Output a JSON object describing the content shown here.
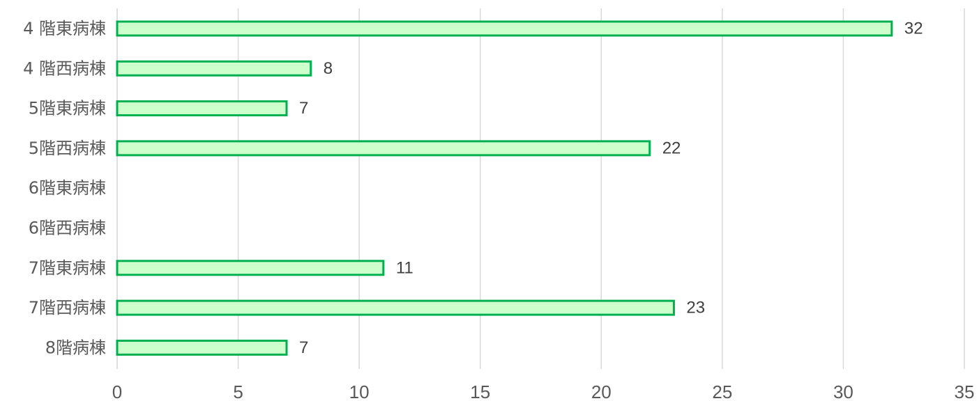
{
  "chart_data": {
    "type": "bar",
    "orientation": "horizontal",
    "categories": [
      "4 階東病棟",
      "4 階西病棟",
      "5階東病棟",
      "5階西病棟",
      "6階東病棟",
      "6階西病棟",
      "7階東病棟",
      "7階西病棟",
      "8階病棟"
    ],
    "values": [
      32,
      8,
      7,
      22,
      null,
      null,
      11,
      23,
      7
    ],
    "data_labels": [
      "32",
      "8",
      "7",
      "22",
      "",
      "",
      "11",
      "23",
      "7"
    ],
    "xlim": [
      0,
      35
    ],
    "x_ticks": [
      0,
      5,
      10,
      15,
      20,
      25,
      30,
      35
    ],
    "x_tick_labels": [
      "0",
      "5",
      "10",
      "15",
      "20",
      "25",
      "30",
      "35"
    ],
    "grid": "vertical",
    "colors": {
      "bar_fill": "#ccffcc",
      "bar_stroke": "#00b050",
      "grid": "#d9d9d9",
      "text": "#595959"
    }
  }
}
